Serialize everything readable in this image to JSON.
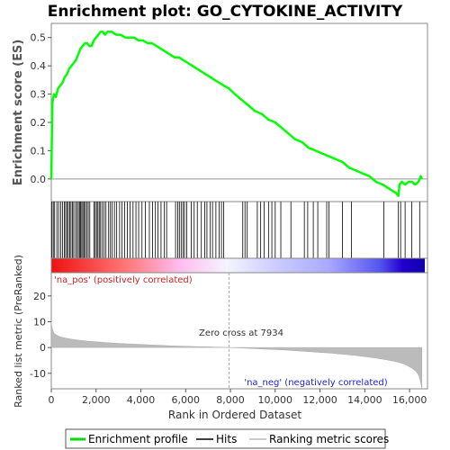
{
  "chart_data": {
    "type": "line",
    "title": "Enrichment plot: GO_CYTOKINE_ACTIVITY",
    "es_ylabel": "Enrichment score (ES)",
    "metric_ylabel": "Ranked list metric (PreRanked)",
    "xlabel": "Rank in Ordered Dataset",
    "x_range": [
      0,
      16800
    ],
    "es_ylim": [
      -0.08,
      0.55
    ],
    "metric_ylim": [
      -16,
      29
    ],
    "x_ticks": [
      "0",
      "2,000",
      "4,000",
      "6,000",
      "8,000",
      "10,000",
      "12,000",
      "14,000",
      "16,000"
    ],
    "x_tick_values": [
      0,
      2000,
      4000,
      6000,
      8000,
      10000,
      12000,
      14000,
      16000
    ],
    "es_ticks": [
      "0.0",
      "0.1",
      "0.2",
      "0.3",
      "0.4",
      "0.5"
    ],
    "es_tick_values": [
      0.0,
      0.1,
      0.2,
      0.3,
      0.4,
      0.5
    ],
    "metric_ticks": [
      "-10",
      "0",
      "10",
      "20"
    ],
    "metric_tick_values": [
      -10,
      0,
      10,
      20
    ],
    "pos_label": "'na_pos' (positively correlated)",
    "neg_label": "'na_neg' (negatively correlated)",
    "zero_cross_label": "Zero cross at 7934",
    "zero_cross": 7934,
    "grid": false,
    "legend_position": "bottom",
    "legend": [
      {
        "label": "Enrichment profile",
        "color": "#00dd00"
      },
      {
        "label": "Hits",
        "color": "#000000"
      },
      {
        "label": "Ranking metric scores",
        "color": "#bbbbbb"
      }
    ],
    "series": [
      {
        "name": "Enrichment profile",
        "color": "#00ff00",
        "x": [
          0,
          50,
          120,
          200,
          300,
          400,
          500,
          600,
          700,
          800,
          900,
          1000,
          1100,
          1200,
          1300,
          1400,
          1500,
          1600,
          1700,
          1800,
          1900,
          2000,
          2100,
          2200,
          2300,
          2400,
          2500,
          2700,
          2900,
          3100,
          3300,
          3500,
          3700,
          3900,
          4100,
          4300,
          4500,
          4700,
          4900,
          5100,
          5300,
          5500,
          5700,
          5900,
          6100,
          6300,
          6500,
          6700,
          6900,
          7100,
          7300,
          7500,
          7700,
          7934,
          8200,
          8500,
          8800,
          9100,
          9400,
          9700,
          10000,
          10300,
          10600,
          10900,
          11200,
          11500,
          11800,
          12100,
          12400,
          12700,
          13000,
          13300,
          13600,
          13900,
          14200,
          14500,
          14800,
          15000,
          15200,
          15400,
          15500,
          15550,
          15650,
          15800,
          15950,
          16100,
          16250,
          16400,
          16500,
          16550
        ],
        "y": [
          0.0,
          0.27,
          0.3,
          0.29,
          0.32,
          0.33,
          0.34,
          0.36,
          0.37,
          0.39,
          0.4,
          0.41,
          0.42,
          0.44,
          0.46,
          0.47,
          0.48,
          0.48,
          0.47,
          0.47,
          0.49,
          0.5,
          0.51,
          0.52,
          0.52,
          0.51,
          0.52,
          0.52,
          0.51,
          0.51,
          0.5,
          0.5,
          0.5,
          0.49,
          0.49,
          0.48,
          0.48,
          0.47,
          0.46,
          0.45,
          0.44,
          0.43,
          0.43,
          0.42,
          0.41,
          0.4,
          0.39,
          0.38,
          0.37,
          0.36,
          0.35,
          0.34,
          0.33,
          0.32,
          0.3,
          0.28,
          0.26,
          0.24,
          0.23,
          0.21,
          0.2,
          0.18,
          0.16,
          0.14,
          0.13,
          0.11,
          0.1,
          0.09,
          0.08,
          0.07,
          0.06,
          0.04,
          0.03,
          0.02,
          0.01,
          -0.01,
          -0.02,
          -0.03,
          -0.04,
          -0.05,
          -0.06,
          -0.02,
          -0.01,
          -0.02,
          -0.01,
          -0.01,
          -0.02,
          -0.01,
          0.01,
          0.0
        ]
      },
      {
        "name": "Hits",
        "color": "#000000",
        "x": [
          30,
          90,
          150,
          250,
          330,
          420,
          500,
          580,
          640,
          700,
          760,
          820,
          880,
          940,
          1000,
          1080,
          1150,
          1210,
          1260,
          1310,
          1360,
          1410,
          1460,
          1520,
          1580,
          1650,
          1720,
          1900,
          1960,
          2020,
          2080,
          2140,
          2200,
          2280,
          2360,
          2440,
          2560,
          2640,
          2720,
          2820,
          2920,
          3050,
          3160,
          3280,
          3400,
          3520,
          3650,
          3780,
          3900,
          4050,
          4200,
          4380,
          4520,
          4650,
          4760,
          4900,
          5050,
          5150,
          5550,
          5650,
          5720,
          5800,
          5880,
          5950,
          6050,
          6250,
          6380,
          6520,
          6700,
          6850,
          6950,
          7100,
          7200,
          7350,
          7500,
          7600,
          7700,
          8550,
          8650,
          8750,
          9200,
          9350,
          9500,
          9700,
          9850,
          10000,
          10250,
          10700,
          11300,
          11450,
          11700,
          11900,
          12300,
          12400,
          13000,
          13400,
          14850,
          15500,
          15600,
          15800,
          16100,
          16450
        ]
      },
      {
        "name": "Ranking metric scores",
        "color": "#bbbbbb",
        "x": [
          0,
          20,
          60,
          120,
          200,
          300,
          450,
          600,
          800,
          1000,
          1300,
          1600,
          2000,
          2500,
          3000,
          3500,
          4000,
          4500,
          5000,
          5500,
          6000,
          6500,
          7000,
          7500,
          7934,
          8500,
          9000,
          9500,
          10000,
          10500,
          11000,
          11500,
          12000,
          12500,
          13000,
          13500,
          14000,
          14500,
          15000,
          15400,
          15700,
          15900,
          16100,
          16250,
          16350,
          16420,
          16480,
          16550
        ],
        "y": [
          10,
          8.5,
          7,
          5.5,
          5,
          4.5,
          4,
          3.7,
          3.4,
          3.1,
          2.8,
          2.5,
          2.2,
          1.9,
          1.6,
          1.4,
          1.2,
          1.0,
          0.8,
          0.6,
          0.5,
          0.35,
          0.25,
          0.1,
          0,
          -0.2,
          -0.4,
          -0.6,
          -0.8,
          -1.0,
          -1.3,
          -1.6,
          -1.9,
          -2.2,
          -2.6,
          -3.0,
          -3.5,
          -4.1,
          -4.8,
          -5.5,
          -6.2,
          -7.0,
          -8.0,
          -9.0,
          -10.0,
          -11.0,
          -13.0,
          -16.0
        ]
      }
    ]
  }
}
